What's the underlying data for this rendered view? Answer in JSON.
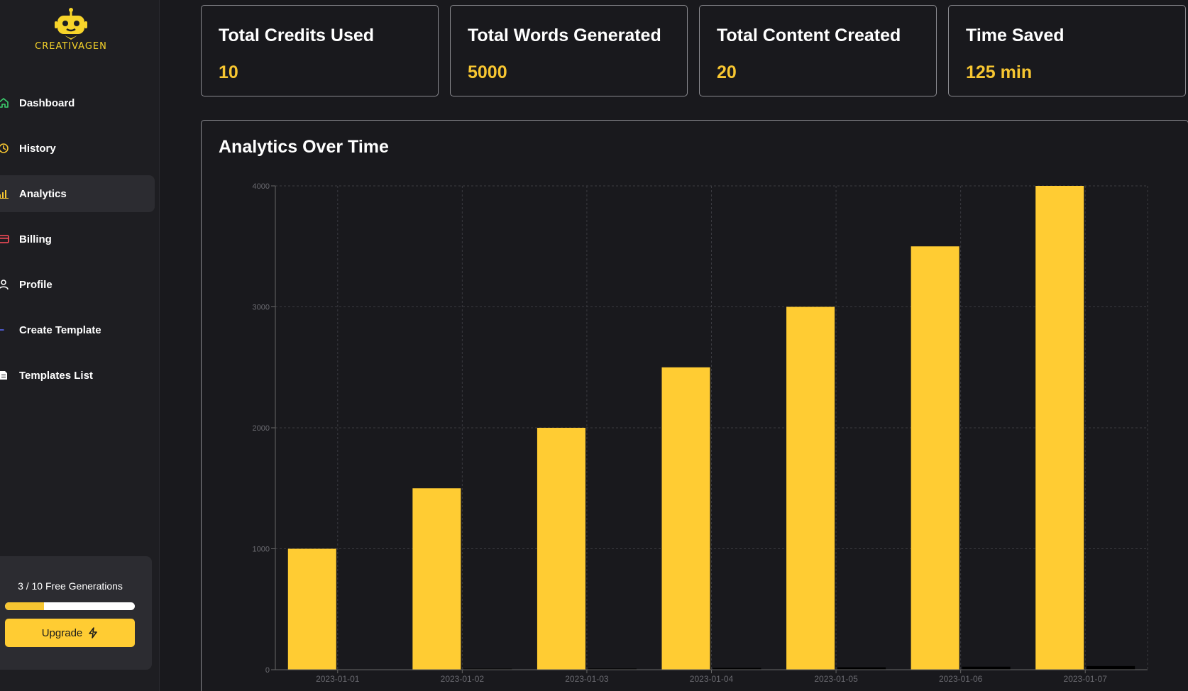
{
  "sidebar": {
    "logo_text": "CREATIVAGEN",
    "items": [
      {
        "label": "Dashboard",
        "icon": "home-icon",
        "color": "#3ccf6e"
      },
      {
        "label": "History",
        "icon": "clock-icon",
        "color": "#f7c631"
      },
      {
        "label": "Analytics",
        "icon": "bar-chart-icon",
        "color": "#f7c631"
      },
      {
        "label": "Billing",
        "icon": "credit-card-icon",
        "color": "#ff4d5a"
      },
      {
        "label": "Profile",
        "icon": "user-icon",
        "color": "#ffffff"
      },
      {
        "label": "Create Template",
        "icon": "plus-icon",
        "color": "#5b6cff"
      },
      {
        "label": "Templates List",
        "icon": "document-icon",
        "color": "#ffffff"
      }
    ],
    "active_index": 2,
    "usage": {
      "text": "3 / 10 Free Generations",
      "used": 3,
      "total": 10
    },
    "upgrade_label": "Upgrade",
    "upgrade_icon": "lightning-icon"
  },
  "stats": [
    {
      "title": "Total Credits Used",
      "value": "10"
    },
    {
      "title": "Total Words Generated",
      "value": "5000"
    },
    {
      "title": "Total Content Created",
      "value": "20"
    },
    {
      "title": "Time Saved",
      "value": "125 min"
    }
  ],
  "chart": {
    "title": "Analytics Over Time"
  },
  "colors": {
    "accent": "#f7c631",
    "background": "#19191d",
    "sidebar": "#1e1e22"
  },
  "chart_data": {
    "type": "bar",
    "categories": [
      "2023-01-01",
      "2023-01-02",
      "2023-01-03",
      "2023-01-04",
      "2023-01-05",
      "2023-01-06",
      "2023-01-07"
    ],
    "series": [
      {
        "values": [
          1000,
          1500,
          2000,
          2500,
          3000,
          3500,
          4000
        ],
        "color": "#ffcc33"
      },
      {
        "values": [
          0,
          5,
          10,
          15,
          20,
          25,
          30
        ],
        "color": "#000000"
      }
    ],
    "yticks": [
      0,
      1000,
      2000,
      3000,
      4000
    ],
    "ylim": [
      0,
      4000
    ],
    "grid": true
  }
}
